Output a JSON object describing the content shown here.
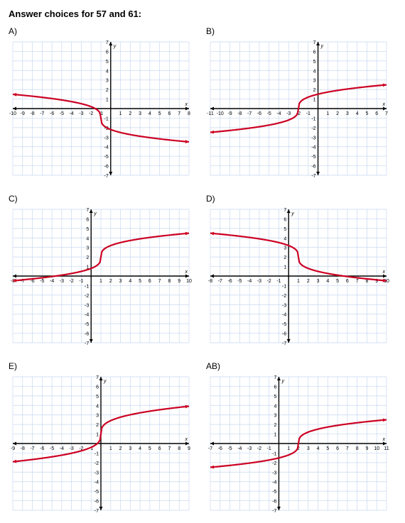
{
  "title": "Answer choices for 57 and 61:",
  "colors": {
    "grid": "#c8d8f0",
    "axis": "#000000",
    "curve": "#cc0022",
    "axisnum": "#000000",
    "bg": "#ffffff"
  },
  "axis_fontsize": 7,
  "charts": [
    {
      "label": "A)",
      "xrange": [
        -10,
        8
      ],
      "yrange": [
        -7,
        7
      ],
      "xticks": [
        -10,
        -9,
        -8,
        -7,
        -6,
        -5,
        -4,
        -3,
        -2,
        -1,
        1,
        2,
        3,
        4,
        5,
        6,
        7,
        8
      ],
      "yticks": [
        -7,
        -6,
        -5,
        -4,
        -3,
        -2,
        -1,
        1,
        2,
        3,
        4,
        5,
        6,
        7
      ],
      "curve_type": "cuberoot_neg",
      "curve_params": {
        "h": -1,
        "k": -1,
        "a": -1.2
      },
      "left_arrow": true,
      "right_arrow": true
    },
    {
      "label": "B)",
      "xrange": [
        -11,
        7
      ],
      "yrange": [
        -7,
        7
      ],
      "xticks": [
        -11,
        -10,
        -9,
        -8,
        -7,
        -6,
        -5,
        -4,
        -3,
        -2,
        -1,
        1,
        2,
        3,
        4,
        5,
        6,
        7
      ],
      "yticks": [
        -7,
        -6,
        -5,
        -4,
        -3,
        -2,
        -1,
        1,
        2,
        3,
        4,
        5,
        6,
        7
      ],
      "curve_type": "cuberoot",
      "curve_params": {
        "h": -2,
        "k": 0,
        "a": 1.2
      },
      "left_arrow": true,
      "right_arrow": true
    },
    {
      "label": "C)",
      "xrange": [
        -8,
        10
      ],
      "yrange": [
        -7,
        7
      ],
      "xticks": [
        -8,
        -7,
        -6,
        -5,
        -4,
        -3,
        -2,
        -1,
        1,
        2,
        3,
        4,
        5,
        6,
        7,
        8,
        9,
        10
      ],
      "yticks": [
        -7,
        -6,
        -5,
        -4,
        -3,
        -2,
        -1,
        1,
        2,
        3,
        4,
        5,
        6,
        7
      ],
      "curve_type": "cuberoot",
      "curve_params": {
        "h": 1,
        "k": 2,
        "a": 1.2
      },
      "left_arrow": true,
      "right_arrow": true
    },
    {
      "label": "D)",
      "xrange": [
        -8,
        10
      ],
      "yrange": [
        -7,
        7
      ],
      "xticks": [
        -8,
        -7,
        -6,
        -5,
        -4,
        -3,
        -2,
        -1,
        1,
        2,
        3,
        4,
        5,
        6,
        7,
        8,
        9,
        10
      ],
      "yticks": [
        -7,
        -6,
        -5,
        -4,
        -3,
        -2,
        -1,
        1,
        2,
        3,
        4,
        5,
        6,
        7
      ],
      "curve_type": "cuberoot_neg",
      "curve_params": {
        "h": 1,
        "k": 2,
        "a": -1.2
      },
      "left_arrow": true,
      "right_arrow": true
    },
    {
      "label": "E)",
      "xrange": [
        -9,
        9
      ],
      "yrange": [
        -7,
        7
      ],
      "xticks": [
        -9,
        -8,
        -7,
        -6,
        -5,
        -4,
        -3,
        -2,
        -1,
        1,
        2,
        3,
        4,
        5,
        6,
        7,
        8,
        9
      ],
      "yticks": [
        -7,
        -6,
        -5,
        -4,
        -3,
        -2,
        -1,
        1,
        2,
        3,
        4,
        5,
        6,
        7
      ],
      "curve_type": "cuberoot",
      "curve_params": {
        "h": 0,
        "k": 1,
        "a": 1.4
      },
      "left_arrow": true,
      "right_arrow": true
    },
    {
      "label": "AB)",
      "xrange": [
        -7,
        11
      ],
      "yrange": [
        -7,
        7
      ],
      "xticks": [
        -7,
        -6,
        -5,
        -4,
        -3,
        -2,
        -1,
        1,
        2,
        3,
        4,
        5,
        6,
        7,
        8,
        9,
        10,
        11
      ],
      "yticks": [
        -7,
        -6,
        -5,
        -4,
        -3,
        -2,
        -1,
        1,
        2,
        3,
        4,
        5,
        6,
        7
      ],
      "curve_type": "cuberoot",
      "curve_params": {
        "h": 2,
        "k": 0,
        "a": 1.2
      },
      "left_arrow": true,
      "right_arrow": true
    }
  ]
}
